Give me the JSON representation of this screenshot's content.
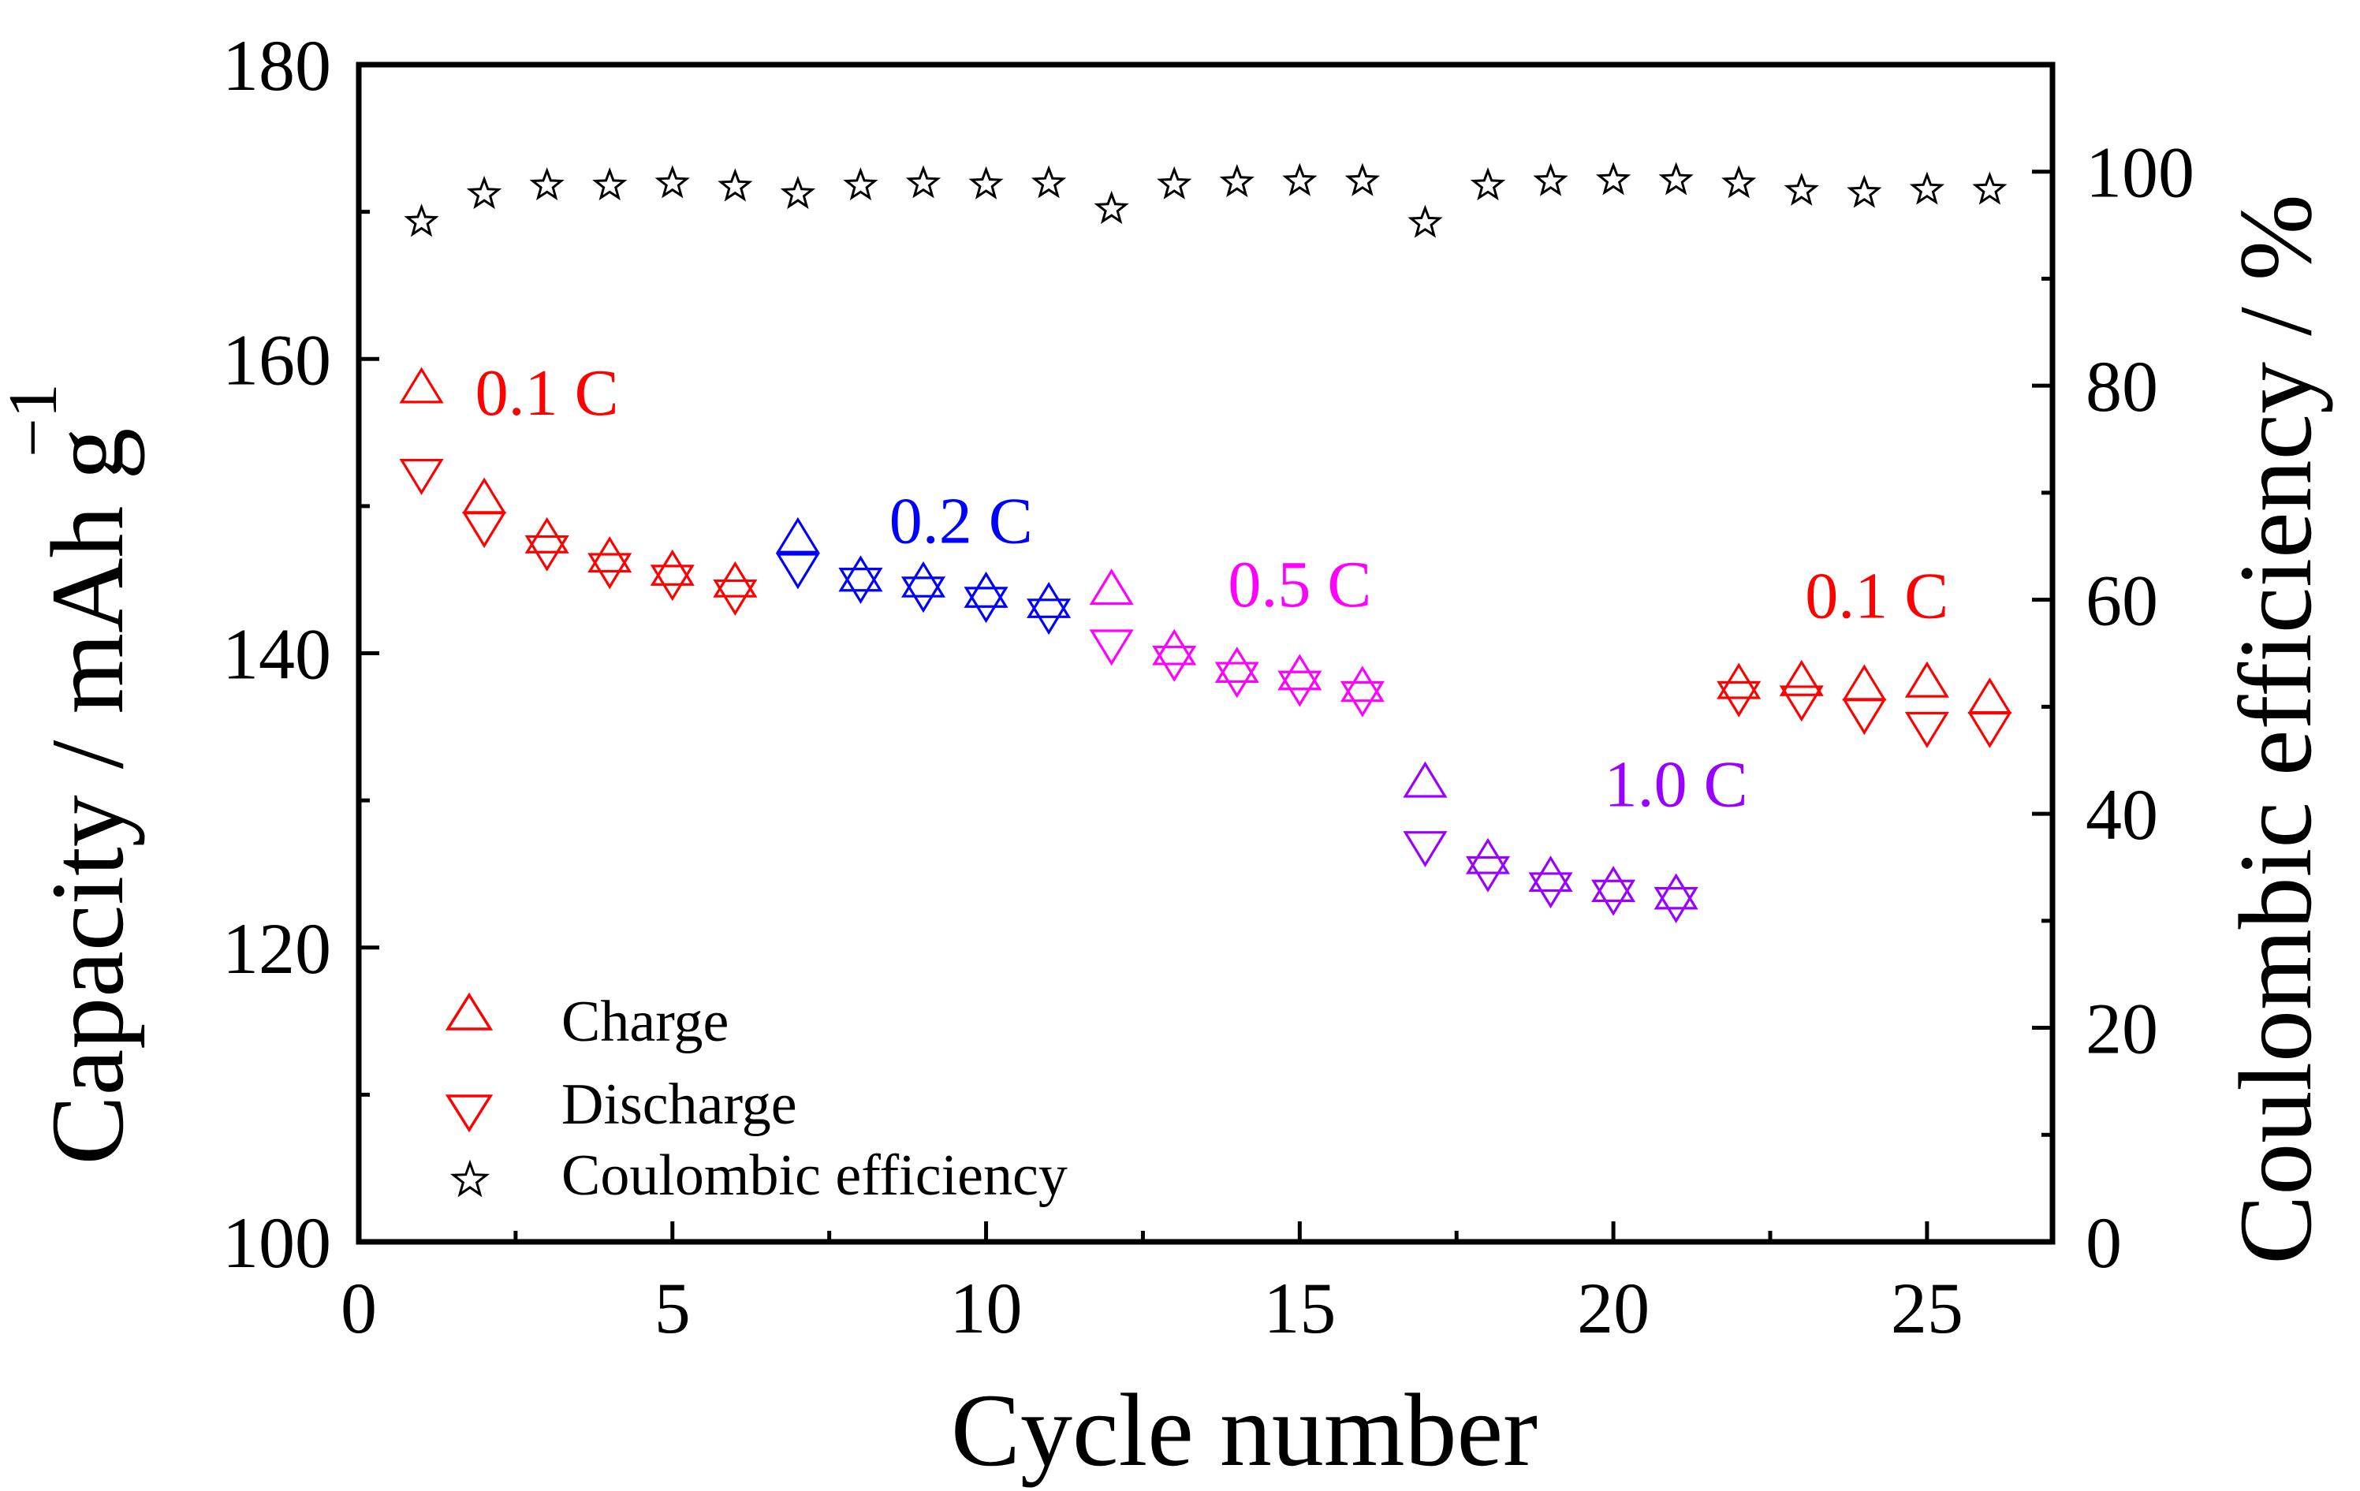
{
  "chart_data": {
    "type": "scatter",
    "title": "",
    "xlabel": "Cycle number",
    "ylabel": "Capacity / mAh g",
    "ylabel_superscript": "−1",
    "y2label": "Coulombic efficiency / %",
    "xlim": [
      0,
      27
    ],
    "ylim": [
      100,
      180
    ],
    "y2lim": [
      0,
      110
    ],
    "x_ticks": [
      "0",
      "5",
      "10",
      "15",
      "20",
      "25"
    ],
    "y_ticks": [
      "100",
      "120",
      "140",
      "160",
      "180"
    ],
    "y2_ticks": [
      "0",
      "20",
      "40",
      "60",
      "80",
      "100"
    ],
    "legend": [
      {
        "label": "Charge",
        "marker": "triangle-up"
      },
      {
        "label": "Discharge",
        "marker": "triangle-down"
      },
      {
        "label": "Coulombic efficiency",
        "marker": "star"
      }
    ],
    "legend_position": "bottom-left",
    "segment_colors": {
      "0.1C": "#ff0000",
      "0.2C": "#0000ff",
      "0.5C": "#ff00ff",
      "1.0C": "#9900ff"
    },
    "star_color": "#000000",
    "annotations": [
      {
        "text": "0.1 C",
        "x": 3.0,
        "y": 157.7,
        "color": "#ff0000"
      },
      {
        "text": "0.2 C",
        "x": 9.6,
        "y": 149.0,
        "color": "#0000ff"
      },
      {
        "text": "0.5 C",
        "x": 15.0,
        "y": 144.7,
        "color": "#ff00ff"
      },
      {
        "text": "1.0 C",
        "x": 21.0,
        "y": 131.1,
        "color": "#9900ff"
      },
      {
        "text": "0.1 C",
        "x": 24.2,
        "y": 143.9,
        "color": "#ff0000"
      }
    ],
    "series": [
      {
        "name": "Charge",
        "axis": "left",
        "x": [
          1,
          2,
          3,
          4,
          5,
          6,
          7,
          8,
          9,
          10,
          11,
          12,
          13,
          14,
          15,
          16,
          17,
          18,
          19,
          20,
          21,
          22,
          23,
          24,
          25,
          26
        ],
        "values": [
          158.0,
          150.5,
          147.8,
          146.5,
          145.6,
          144.8,
          147.8,
          145.2,
          144.8,
          144.1,
          143.4,
          144.3,
          140.2,
          139.0,
          138.5,
          137.7,
          131.2,
          126.0,
          124.8,
          124.1,
          123.6,
          137.9,
          138.1,
          137.8,
          138.0,
          136.9
        ],
        "segments": [
          "0.1C",
          "0.1C",
          "0.1C",
          "0.1C",
          "0.1C",
          "0.1C",
          "0.2C",
          "0.2C",
          "0.2C",
          "0.2C",
          "0.2C",
          "0.5C",
          "0.5C",
          "0.5C",
          "0.5C",
          "0.5C",
          "1.0C",
          "1.0C",
          "1.0C",
          "1.0C",
          "1.0C",
          "0.1C",
          "0.1C",
          "0.1C",
          "0.1C",
          "0.1C"
        ]
      },
      {
        "name": "Discharge",
        "axis": "left",
        "x": [
          1,
          2,
          3,
          4,
          5,
          6,
          7,
          8,
          9,
          10,
          11,
          12,
          13,
          14,
          15,
          16,
          17,
          18,
          19,
          20,
          21,
          22,
          23,
          24,
          25,
          26
        ],
        "values": [
          152.2,
          148.6,
          147.0,
          145.8,
          145.0,
          144.0,
          145.8,
          144.8,
          144.2,
          143.5,
          142.7,
          140.6,
          139.5,
          138.4,
          137.8,
          137.1,
          126.9,
          125.2,
          124.1,
          123.6,
          123.1,
          137.1,
          136.8,
          135.9,
          135.0,
          135.0
        ],
        "segments": [
          "0.1C",
          "0.1C",
          "0.1C",
          "0.1C",
          "0.1C",
          "0.1C",
          "0.2C",
          "0.2C",
          "0.2C",
          "0.2C",
          "0.2C",
          "0.5C",
          "0.5C",
          "0.5C",
          "0.5C",
          "0.5C",
          "1.0C",
          "1.0C",
          "1.0C",
          "1.0C",
          "1.0C",
          "0.1C",
          "0.1C",
          "0.1C",
          "0.1C",
          "0.1C"
        ]
      },
      {
        "name": "Coulombic efficiency",
        "axis": "right",
        "x": [
          1,
          2,
          3,
          4,
          5,
          6,
          7,
          8,
          9,
          10,
          11,
          12,
          13,
          14,
          15,
          16,
          17,
          18,
          19,
          20,
          21,
          22,
          23,
          24,
          25,
          26
        ],
        "values": [
          95.3,
          97.9,
          98.7,
          98.7,
          98.9,
          98.6,
          97.9,
          98.7,
          98.9,
          98.8,
          98.9,
          96.5,
          98.8,
          99.0,
          99.1,
          99.1,
          95.2,
          98.7,
          99.1,
          99.2,
          99.2,
          98.9,
          98.2,
          98.0,
          98.3,
          98.3
        ]
      }
    ]
  }
}
